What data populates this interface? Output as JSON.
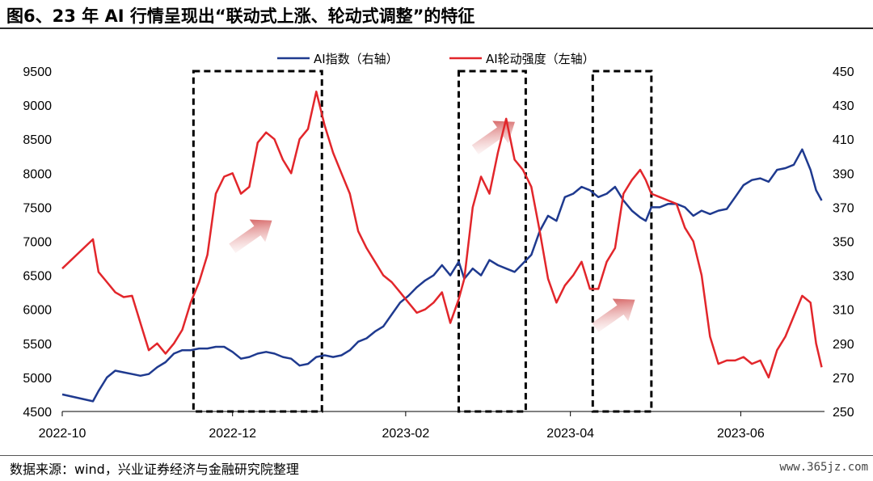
{
  "title": "图6、23 年 AI 行情呈现出“联动式上涨、轮动式调整”的特征",
  "source": "数据来源：wind，兴业证券经济与金融研究院整理",
  "watermark": "www.365jz.com",
  "colors": {
    "index": "#1f3a8f",
    "rotation": "#e2262b",
    "arrow": "#c62828"
  },
  "chart_data": {
    "type": "line",
    "x_ticks": [
      "2022-10",
      "2022-12",
      "2023-02",
      "2023-04",
      "2023-06"
    ],
    "y_left": {
      "range": [
        4500,
        9500
      ],
      "ticks": [
        4500,
        5000,
        5500,
        6000,
        6500,
        7000,
        7500,
        8000,
        8500,
        9000,
        9500
      ]
    },
    "y_right": {
      "range": [
        250,
        450
      ],
      "ticks": [
        250,
        270,
        290,
        310,
        330,
        350,
        370,
        390,
        410,
        430,
        450
      ]
    },
    "grid": false,
    "legend_position": "top-center",
    "annotations": {
      "dashed_boxes": [
        {
          "start": "2022-11-17",
          "end": "2023-01-02"
        },
        {
          "start": "2023-02-20",
          "end": "2023-03-16"
        },
        {
          "start": "2023-04-09",
          "end": "2023-04-30"
        }
      ],
      "up_arrows": [
        "2022-12-08",
        "2023-03-05",
        "2023-04-17"
      ]
    },
    "series": [
      {
        "name": "AI指数（右轴）",
        "axis": "right",
        "dates": [
          "2022-10-01",
          "2022-10-12",
          "2022-10-14",
          "2022-10-17",
          "2022-10-20",
          "2022-10-23",
          "2022-10-26",
          "2022-10-29",
          "2022-11-01",
          "2022-11-04",
          "2022-11-07",
          "2022-11-10",
          "2022-11-13",
          "2022-11-16",
          "2022-11-19",
          "2022-11-22",
          "2022-11-25",
          "2022-11-28",
          "2022-12-01",
          "2022-12-04",
          "2022-12-07",
          "2022-12-10",
          "2022-12-13",
          "2022-12-16",
          "2022-12-19",
          "2022-12-22",
          "2022-12-25",
          "2022-12-28",
          "2022-12-31",
          "2023-01-03",
          "2023-01-06",
          "2023-01-09",
          "2023-01-12",
          "2023-01-15",
          "2023-01-18",
          "2023-01-21",
          "2023-01-24",
          "2023-01-27",
          "2023-01-30",
          "2023-02-02",
          "2023-02-05",
          "2023-02-08",
          "2023-02-11",
          "2023-02-14",
          "2023-02-17",
          "2023-02-20",
          "2023-02-22",
          "2023-02-25",
          "2023-02-28",
          "2023-03-03",
          "2023-03-06",
          "2023-03-09",
          "2023-03-12",
          "2023-03-15",
          "2023-03-18",
          "2023-03-21",
          "2023-03-24",
          "2023-03-27",
          "2023-03-30",
          "2023-04-02",
          "2023-04-05",
          "2023-04-08",
          "2023-04-11",
          "2023-04-14",
          "2023-04-17",
          "2023-04-20",
          "2023-04-23",
          "2023-04-26",
          "2023-04-28",
          "2023-04-30",
          "2023-05-03",
          "2023-05-06",
          "2023-05-09",
          "2023-05-12",
          "2023-05-15",
          "2023-05-18",
          "2023-05-21",
          "2023-05-24",
          "2023-05-27",
          "2023-05-30",
          "2023-06-02",
          "2023-06-05",
          "2023-06-08",
          "2023-06-11",
          "2023-06-14",
          "2023-06-17",
          "2023-06-20",
          "2023-06-23",
          "2023-06-26",
          "2023-06-28",
          "2023-06-30"
        ],
        "values": [
          260,
          256,
          262,
          270,
          274,
          273,
          272,
          271,
          272,
          276,
          279,
          284,
          286,
          286,
          287,
          287,
          288,
          288,
          285,
          281,
          282,
          284,
          285,
          284,
          282,
          281,
          277,
          278,
          282,
          283,
          282,
          283,
          286,
          291,
          293,
          297,
          300,
          307,
          314,
          318,
          323,
          327,
          330,
          336,
          330,
          338,
          328,
          334,
          330,
          339,
          336,
          334,
          332,
          337,
          342,
          356,
          365,
          362,
          376,
          378,
          382,
          380,
          376,
          378,
          382,
          374,
          368,
          364,
          362,
          370,
          370,
          372,
          372,
          370,
          365,
          368,
          366,
          368,
          369,
          376,
          383,
          386,
          387,
          385,
          392,
          393,
          395,
          404,
          392,
          380,
          374
        ]
      },
      {
        "name": "AI轮动强度（左轴）",
        "axis": "left",
        "dates": [
          "2022-10-01",
          "2022-10-12",
          "2022-10-14",
          "2022-10-17",
          "2022-10-20",
          "2022-10-23",
          "2022-10-26",
          "2022-10-29",
          "2022-11-01",
          "2022-11-04",
          "2022-11-07",
          "2022-11-10",
          "2022-11-13",
          "2022-11-16",
          "2022-11-19",
          "2022-11-22",
          "2022-11-25",
          "2022-11-28",
          "2022-12-01",
          "2022-12-04",
          "2022-12-07",
          "2022-12-10",
          "2022-12-13",
          "2022-12-16",
          "2022-12-19",
          "2022-12-22",
          "2022-12-25",
          "2022-12-28",
          "2022-12-31",
          "2023-01-03",
          "2023-01-06",
          "2023-01-09",
          "2023-01-12",
          "2023-01-15",
          "2023-01-18",
          "2023-01-21",
          "2023-01-24",
          "2023-01-27",
          "2023-01-30",
          "2023-02-02",
          "2023-02-05",
          "2023-02-08",
          "2023-02-11",
          "2023-02-14",
          "2023-02-17",
          "2023-02-20",
          "2023-02-22",
          "2023-02-25",
          "2023-02-28",
          "2023-03-03",
          "2023-03-06",
          "2023-03-09",
          "2023-03-12",
          "2023-03-15",
          "2023-03-18",
          "2023-03-21",
          "2023-03-24",
          "2023-03-27",
          "2023-03-30",
          "2023-04-02",
          "2023-04-05",
          "2023-04-08",
          "2023-04-11",
          "2023-04-14",
          "2023-04-17",
          "2023-04-20",
          "2023-04-23",
          "2023-04-26",
          "2023-04-28",
          "2023-04-30",
          "2023-05-03",
          "2023-05-06",
          "2023-05-09",
          "2023-05-12",
          "2023-05-15",
          "2023-05-18",
          "2023-05-21",
          "2023-05-24",
          "2023-05-27",
          "2023-05-30",
          "2023-06-02",
          "2023-06-05",
          "2023-06-08",
          "2023-06-11",
          "2023-06-14",
          "2023-06-17",
          "2023-06-20",
          "2023-06-23",
          "2023-06-26",
          "2023-06-28",
          "2023-06-30"
        ],
        "values": [
          6600,
          7030,
          6550,
          6400,
          6250,
          6180,
          6200,
          5800,
          5400,
          5500,
          5350,
          5500,
          5700,
          6100,
          6400,
          6800,
          7700,
          7950,
          8000,
          7700,
          7800,
          8450,
          8600,
          8500,
          8200,
          8000,
          8500,
          8650,
          9200,
          8700,
          8300,
          8000,
          7700,
          7150,
          6900,
          6700,
          6500,
          6400,
          6250,
          6100,
          5950,
          6000,
          6100,
          6250,
          5800,
          6150,
          6450,
          7500,
          7950,
          7700,
          8300,
          8800,
          8200,
          8050,
          7800,
          7150,
          6450,
          6100,
          6350,
          6500,
          6700,
          6300,
          6300,
          6700,
          6900,
          7700,
          7900,
          8050,
          7900,
          7700,
          7650,
          7600,
          7550,
          7200,
          7000,
          6500,
          5600,
          5200,
          5250,
          5250,
          5300,
          5200,
          5250,
          5000,
          5400,
          5600,
          5900,
          6200,
          6100,
          5500,
          5150
        ]
      }
    ]
  }
}
